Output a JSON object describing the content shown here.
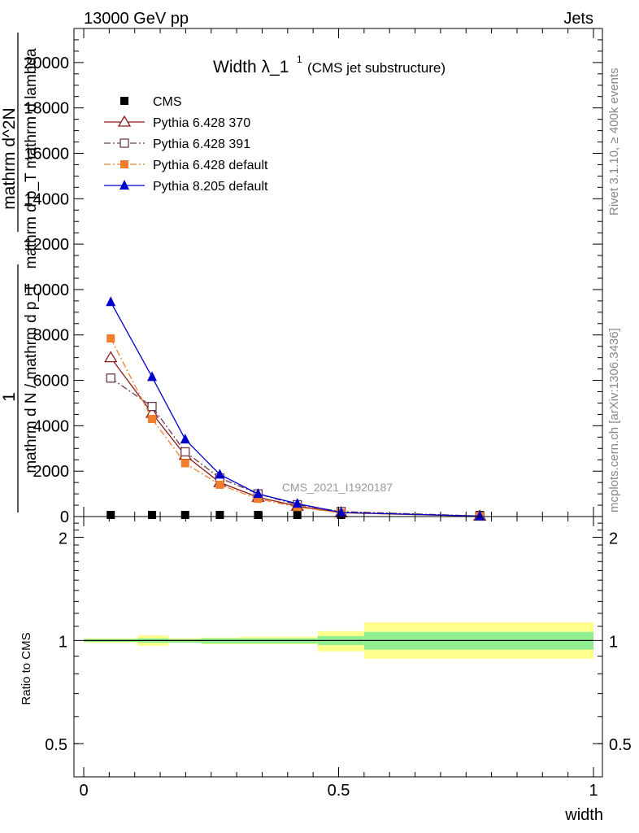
{
  "header": {
    "process": "13000 GeV pp",
    "category": "Jets"
  },
  "title_main": "Width λ_1",
  "title_sup": "1",
  "title_sub": "(CMS jet substructure)",
  "analysis_tag": "CMS_2021_I1920187",
  "side_text_top": "Rivet 3.1.10, ≥ 400k events",
  "side_text_bottom": "mcplots.cern.ch [arXiv:1306.3436]",
  "colors": {
    "cms": "#000000",
    "py370": "#8b1a1a",
    "py391": "#6b3a4a",
    "pydef": "#f07f2b",
    "py8": "#0000cc",
    "band_stat": "#90ee90",
    "band_total": "#ffff8c"
  },
  "chart_data": [
    {
      "type": "line",
      "ylabel_lines": [
        "1",
        "mathrm d N / mathrm d p_T",
        "mathrm d^2N",
        "mathrm d p_T mathrm d lambda"
      ],
      "xlim": [
        0,
        1
      ],
      "ylim": [
        0,
        21500
      ],
      "yticks": [
        0,
        2000,
        4000,
        6000,
        8000,
        10000,
        12000,
        14000,
        16000,
        18000,
        20000
      ],
      "ytick_labels": [
        "0",
        "2000",
        "4000",
        "6000",
        "8000",
        "10000",
        "12000",
        "14000",
        "16000",
        "18000",
        "20000"
      ],
      "legend_placement": "top-left",
      "series": [
        {
          "name": "CMS",
          "key": "cms",
          "marker": "square-filled",
          "line": "none",
          "x": [
            0.053,
            0.134,
            0.199,
            0.267,
            0.342,
            0.419,
            0.505,
            0.777
          ],
          "y": [
            0,
            0,
            0,
            0,
            0,
            0,
            0,
            0
          ]
        },
        {
          "name": "Pythia 6.428 370",
          "key": "py370",
          "marker": "triangle-open",
          "line": "solid",
          "x": [
            0.053,
            0.134,
            0.199,
            0.267,
            0.342,
            0.419,
            0.505,
            0.777
          ],
          "y": [
            7000,
            4550,
            2700,
            1500,
            850,
            460,
            170,
            20
          ]
        },
        {
          "name": "Pythia 6.428 391",
          "key": "py391",
          "marker": "square-open",
          "line": "dashdot",
          "x": [
            0.053,
            0.134,
            0.199,
            0.267,
            0.342,
            0.419,
            0.505,
            0.777
          ],
          "y": [
            6100,
            4850,
            2850,
            1700,
            1000,
            520,
            220,
            25
          ]
        },
        {
          "name": "Pythia 6.428 default",
          "key": "pydef",
          "marker": "square-filled",
          "line": "dashdot",
          "x": [
            0.053,
            0.134,
            0.199,
            0.267,
            0.342,
            0.419,
            0.505,
            0.777
          ],
          "y": [
            7850,
            4300,
            2350,
            1400,
            780,
            420,
            160,
            15
          ]
        },
        {
          "name": "Pythia 8.205 default",
          "key": "py8",
          "marker": "triangle-filled",
          "line": "solid",
          "x": [
            0.053,
            0.134,
            0.199,
            0.267,
            0.342,
            0.419,
            0.505,
            0.777
          ],
          "y": [
            9450,
            6150,
            3400,
            1850,
            1000,
            570,
            180,
            18
          ]
        }
      ]
    },
    {
      "type": "area",
      "ylabel": "Ratio to CMS",
      "xlabel": "width",
      "xlim": [
        0,
        1
      ],
      "ylim": [
        0.4,
        2.3
      ],
      "log_scale": true,
      "yticks": [
        0.5,
        1,
        2
      ],
      "ytick_labels": [
        "0.5",
        "1",
        "2"
      ],
      "xticks": [
        0,
        0.5,
        1
      ],
      "xtick_labels": [
        "0",
        "0.5",
        "1"
      ],
      "reference_line": 1,
      "bins": [
        {
          "x0": 0.0,
          "x1": 0.106,
          "stat": [
            0.99,
            1.01
          ],
          "total": [
            0.985,
            1.015
          ]
        },
        {
          "x0": 0.106,
          "x1": 0.166,
          "stat": [
            0.985,
            1.015
          ],
          "total": [
            0.965,
            1.035
          ]
        },
        {
          "x0": 0.166,
          "x1": 0.231,
          "stat": [
            0.985,
            1.01
          ],
          "total": [
            0.985,
            1.015
          ]
        },
        {
          "x0": 0.231,
          "x1": 0.306,
          "stat": [
            0.98,
            1.015
          ],
          "total": [
            0.975,
            1.02
          ]
        },
        {
          "x0": 0.306,
          "x1": 0.386,
          "stat": [
            0.98,
            1.015
          ],
          "total": [
            0.975,
            1.025
          ]
        },
        {
          "x0": 0.386,
          "x1": 0.459,
          "stat": [
            0.98,
            1.015
          ],
          "total": [
            0.975,
            1.025
          ]
        },
        {
          "x0": 0.459,
          "x1": 0.55,
          "stat": [
            0.97,
            1.03
          ],
          "total": [
            0.93,
            1.065
          ]
        },
        {
          "x0": 0.55,
          "x1": 1.0,
          "stat": [
            0.94,
            1.06
          ],
          "total": [
            0.885,
            1.13
          ]
        }
      ]
    }
  ]
}
